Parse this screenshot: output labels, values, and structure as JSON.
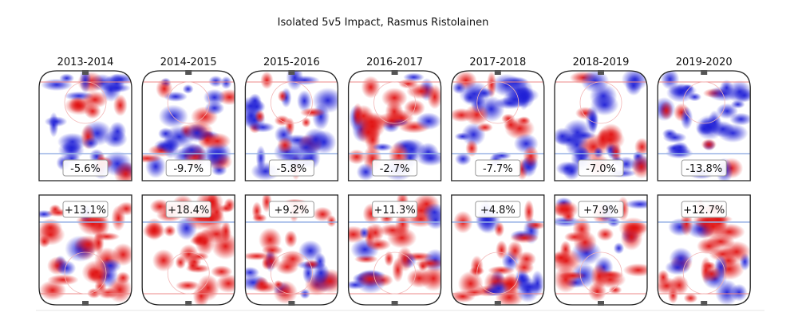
{
  "chart_data": {
    "type": "heatmap",
    "title": "Isolated 5v5 Impact, Rasmus Ristolainen",
    "seasons": [
      "2013-2014",
      "2014-2015",
      "2015-2016",
      "2016-2017",
      "2017-2018",
      "2018-2019",
      "2019-2020"
    ],
    "rows": [
      {
        "name": "",
        "values": [
          "-5.6%",
          "-9.7%",
          "-5.8%",
          "-2.7%",
          "-7.7%",
          "-7.0%",
          "-13.8%"
        ]
      },
      {
        "name": "",
        "values": [
          "+13.1%",
          "+18.4%",
          "+9.2%",
          "+11.3%",
          "+4.8%",
          "+7.9%",
          "+12.7%"
        ]
      }
    ],
    "colormap": {
      "negative": "#1f1fd6",
      "positive": "#e01010",
      "neutral": "#ffffff"
    },
    "grid": false
  }
}
